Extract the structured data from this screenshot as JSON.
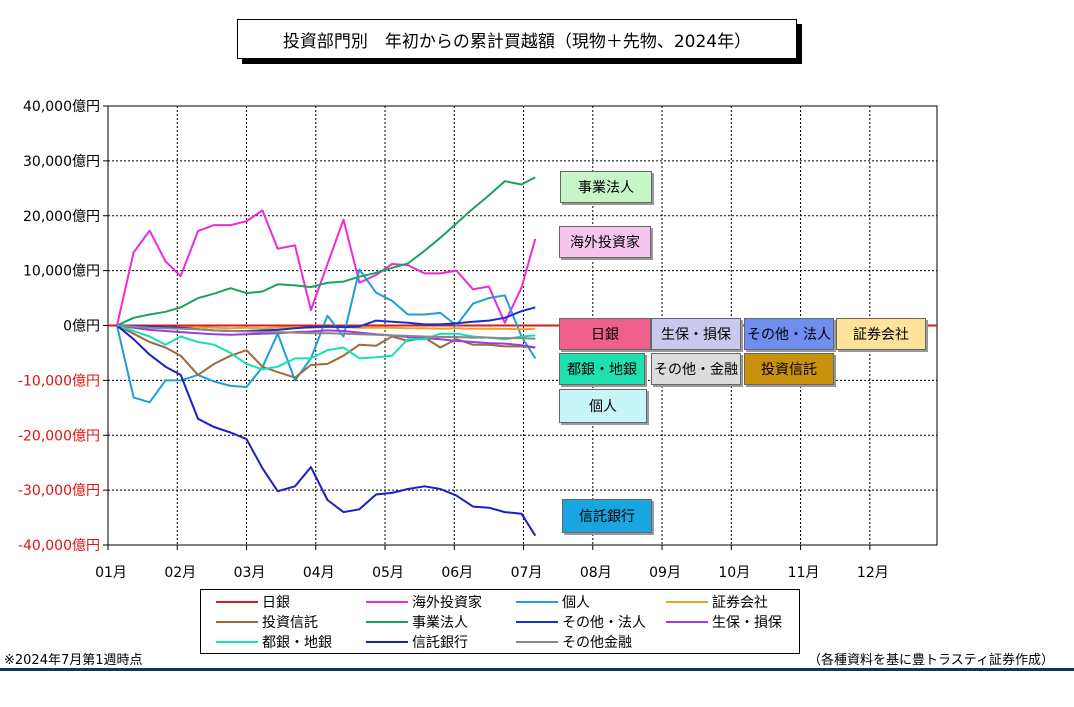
{
  "title": "投資部門別　年初からの累計買越額（現物＋先物、2024年）",
  "note_left": "※2024年7月第1週時点",
  "note_right": "（各種資料を基に豊トラスティ証券作成）",
  "chart_data": {
    "type": "line",
    "title": "投資部門別　年初からの累計買越額（現物＋先物、2024年）",
    "xlabel": "",
    "ylabel": "",
    "ylim": [
      -40000,
      40000
    ],
    "xlim": [
      1,
      12.97
    ],
    "y_ticks": [
      40000,
      30000,
      20000,
      10000,
      0,
      -10000,
      -20000,
      -30000,
      -40000
    ],
    "y_tick_labels": [
      "40,000億円",
      "30,000億円",
      "20,000億円",
      "10,000億円",
      "0億円",
      "-10,000億円",
      "-20,000億円",
      "-30,000億円",
      "-40,000億円"
    ],
    "x_ticks": [
      1,
      2,
      3,
      4,
      5,
      6,
      7,
      8,
      9,
      10,
      11,
      12
    ],
    "x_tick_labels": [
      "01月",
      "02月",
      "03月",
      "04月",
      "05月",
      "06月",
      "07月",
      "08月",
      "09月",
      "10月",
      "11月",
      "12月"
    ],
    "grid": true,
    "legend_position": "bottom",
    "x": [
      1.13,
      1.37,
      1.6,
      1.83,
      2.05,
      2.3,
      2.53,
      2.77,
      3.0,
      3.23,
      3.45,
      3.7,
      3.93,
      4.17,
      4.4,
      4.63,
      4.87,
      5.1,
      5.33,
      5.57,
      5.8,
      6.03,
      6.27,
      6.5,
      6.73,
      6.97,
      7.17
    ],
    "series": [
      {
        "name": "日銀",
        "color": "#d21e1e",
        "values": [
          0,
          0,
          0,
          0,
          0,
          0,
          0,
          0,
          0,
          0,
          0,
          0,
          0,
          0,
          0,
          0,
          0,
          0,
          0,
          0,
          0,
          0,
          0,
          0,
          0,
          0,
          0
        ]
      },
      {
        "name": "海外投資家",
        "color": "#ee2bd9",
        "values": [
          0,
          13300,
          17300,
          11700,
          9000,
          17200,
          18300,
          18300,
          19000,
          21000,
          14000,
          14600,
          2800,
          11200,
          19300,
          7800,
          9200,
          11200,
          11000,
          9500,
          9500,
          10000,
          6600,
          7100,
          500,
          6900,
          15800
        ]
      },
      {
        "name": "個人",
        "color": "#1f9fd8",
        "values": [
          0,
          -13100,
          -14000,
          -10000,
          -10000,
          -9000,
          -10200,
          -11000,
          -11200,
          -7600,
          -1500,
          -10000,
          -6000,
          1800,
          -2000,
          10200,
          6000,
          4500,
          2000,
          2000,
          2300,
          0,
          4000,
          5000,
          5500,
          -2000,
          -6000
        ]
      },
      {
        "name": "証券会社",
        "color": "#f0a020",
        "values": [
          0,
          -200,
          -300,
          -300,
          -400,
          -300,
          -400,
          -500,
          -400,
          -500,
          -400,
          -300,
          -400,
          -300,
          -300,
          -400,
          -400,
          -400,
          -500,
          -500,
          -600,
          -500,
          -600,
          -600,
          -600,
          -700,
          -600
        ]
      },
      {
        "name": "投資信託",
        "color": "#a06a3c",
        "values": [
          0,
          -1500,
          -3000,
          -4000,
          -5500,
          -9000,
          -7000,
          -5500,
          -4500,
          -7500,
          -8500,
          -9500,
          -7200,
          -7000,
          -5500,
          -3500,
          -3700,
          -2000,
          -2800,
          -2200,
          -4000,
          -2500,
          -3500,
          -3500,
          -3800,
          -3800,
          -4000
        ]
      },
      {
        "name": "事業法人",
        "color": "#1aa35c",
        "values": [
          0,
          1400,
          2000,
          2500,
          3300,
          5000,
          5800,
          6800,
          5900,
          6200,
          7500,
          7300,
          7000,
          7800,
          8000,
          8900,
          9600,
          10500,
          11300,
          13600,
          16000,
          18600,
          21300,
          23700,
          26300,
          25700,
          27000
        ]
      },
      {
        "name": "その他・法人",
        "color": "#1a2fd0",
        "values": [
          0,
          -100,
          -200,
          -300,
          -400,
          -700,
          -900,
          -1000,
          -1000,
          -900,
          -800,
          -500,
          -300,
          -200,
          -300,
          -200,
          900,
          700,
          500,
          200,
          200,
          400,
          700,
          900,
          1400,
          2600,
          3300
        ]
      },
      {
        "name": "生保・損保",
        "color": "#9a3ddb",
        "values": [
          0,
          -400,
          -800,
          -1000,
          -1200,
          -1400,
          -1600,
          -1700,
          -1600,
          -1500,
          -1400,
          -1200,
          -1100,
          -900,
          -1000,
          -1300,
          -1600,
          -1800,
          -2100,
          -2300,
          -2500,
          -2800,
          -3000,
          -3200,
          -3300,
          -3600,
          -4000
        ]
      },
      {
        "name": "都銀・地銀",
        "color": "#13e0b8",
        "values": [
          0,
          -1000,
          -2000,
          -3500,
          -2000,
          -3000,
          -3500,
          -5000,
          -7000,
          -8000,
          -7500,
          -6000,
          -6000,
          -4500,
          -4000,
          -6000,
          -5800,
          -5500,
          -2500,
          -2500,
          -1500,
          -1500,
          -2000,
          -2200,
          -2500,
          -2000,
          -1800
        ]
      },
      {
        "name": "信託銀行",
        "color": "#1a1fc8",
        "values": [
          0,
          -2500,
          -5300,
          -7500,
          -9000,
          -17000,
          -18500,
          -19500,
          -20700,
          -26000,
          -30200,
          -29300,
          -25800,
          -31800,
          -34000,
          -33500,
          -30800,
          -30500,
          -29800,
          -29300,
          -29800,
          -31000,
          -33000,
          -33200,
          -34000,
          -34300,
          -38300
        ]
      },
      {
        "name": "その他金融",
        "color": "#888888",
        "values": [
          0,
          -200,
          -400,
          -500,
          -600,
          -700,
          -900,
          -1000,
          -1100,
          -1200,
          -1200,
          -1300,
          -1400,
          -1400,
          -1500,
          -1600,
          -1700,
          -1800,
          -1900,
          -2000,
          -2100,
          -2100,
          -2200,
          -2200,
          -2300,
          -2300,
          -2400
        ]
      }
    ],
    "annotations": [
      {
        "text": "事業法人",
        "bg": "#c8f5c8"
      },
      {
        "text": "海外投資家",
        "bg": "#f7c6f0"
      },
      {
        "text": "日銀",
        "bg": "#f0608c"
      },
      {
        "text": "生保・損保",
        "bg": "#cbc8f0"
      },
      {
        "text": "その他・法人",
        "bg": "#6f8ef0"
      },
      {
        "text": "証券会社",
        "bg": "#fde29a"
      },
      {
        "text": "都銀・地銀",
        "bg": "#1fe0b0"
      },
      {
        "text": "その他・金融",
        "bg": "#dcdcdc"
      },
      {
        "text": "投資信託",
        "bg": "#c9920c"
      },
      {
        "text": "個人",
        "bg": "#c8f5f5"
      },
      {
        "text": "信託銀行",
        "bg": "#19a5e0"
      }
    ]
  },
  "legend": [
    {
      "label": "日銀",
      "color": "#d21e1e"
    },
    {
      "label": "海外投資家",
      "color": "#ee2bd9"
    },
    {
      "label": "個人",
      "color": "#1f9fd8"
    },
    {
      "label": "証券会社",
      "color": "#f0a020"
    },
    {
      "label": "投資信託",
      "color": "#a06a3c"
    },
    {
      "label": "事業法人",
      "color": "#1aa35c"
    },
    {
      "label": "その他・法人",
      "color": "#1a2fd0"
    },
    {
      "label": "生保・損保",
      "color": "#9a3ddb"
    },
    {
      "label": "都銀・地銀",
      "color": "#13e0b8"
    },
    {
      "label": "信託銀行",
      "color": "#1a1fc8"
    },
    {
      "label": "その他金融",
      "color": "#888888"
    }
  ]
}
